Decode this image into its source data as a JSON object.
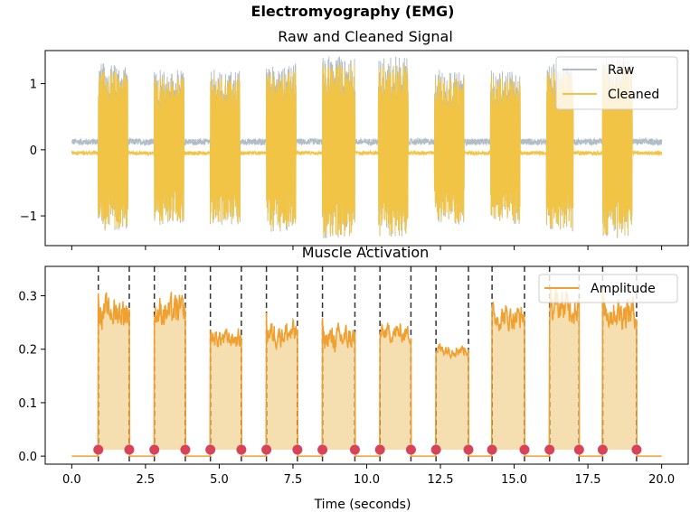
{
  "title": "Electromyography (EMG)",
  "colors": {
    "raw": "#b0bcc6",
    "cleaned": "#f1c445",
    "amplitude": "#f0a030",
    "fill": "#f5deb0",
    "marker": "#d9435a",
    "vline": "#333333"
  },
  "chart_data": [
    {
      "type": "line",
      "title": "Raw and Cleaned Signal",
      "xlabel": "",
      "ylabel": "",
      "xlim": [
        -0.9,
        20.9
      ],
      "ylim": [
        -1.45,
        1.5
      ],
      "yticks": [
        -1,
        0,
        1
      ],
      "ytick_labels": [
        "−1",
        "0",
        "1"
      ],
      "legend": {
        "position": "top-right",
        "entries": [
          "Raw",
          "Cleaned"
        ]
      },
      "x_range": [
        0,
        20
      ],
      "baseline": {
        "raw_level": 0.12,
        "cleaned_level": -0.05,
        "raw_noise": 0.05,
        "cleaned_noise": 0.03
      },
      "bursts": [
        {
          "start": 0.9,
          "end": 1.9,
          "amplitude": 1.2
        },
        {
          "start": 2.8,
          "end": 3.8,
          "amplitude": 1.1
        },
        {
          "start": 4.7,
          "end": 5.7,
          "amplitude": 1.1
        },
        {
          "start": 6.6,
          "end": 7.6,
          "amplitude": 1.2
        },
        {
          "start": 8.5,
          "end": 9.6,
          "amplitude": 1.3
        },
        {
          "start": 10.4,
          "end": 11.4,
          "amplitude": 1.3
        },
        {
          "start": 12.3,
          "end": 13.3,
          "amplitude": 1.1
        },
        {
          "start": 14.2,
          "end": 15.2,
          "amplitude": 1.1
        },
        {
          "start": 16.1,
          "end": 17.0,
          "amplitude": 1.2
        },
        {
          "start": 18.0,
          "end": 19.0,
          "amplitude": 1.3
        }
      ],
      "series": [
        {
          "name": "Raw"
        },
        {
          "name": "Cleaned"
        }
      ]
    },
    {
      "type": "area",
      "title": "Muscle Activation",
      "xlabel": "Time (seconds)",
      "ylabel": "",
      "xlim": [
        -0.9,
        20.9
      ],
      "ylim": [
        -0.015,
        0.355
      ],
      "xticks": [
        0,
        2.5,
        5,
        7.5,
        10,
        12.5,
        15,
        17.5,
        20
      ],
      "xtick_labels": [
        "0.0",
        "2.5",
        "5.0",
        "7.5",
        "10.0",
        "12.5",
        "15.0",
        "17.5",
        "20.0"
      ],
      "yticks": [
        0,
        0.1,
        0.2,
        0.3
      ],
      "ytick_labels": [
        "0.0",
        "0.1",
        "0.2",
        "0.3"
      ],
      "legend": {
        "position": "top-right",
        "entries": [
          "Amplitude"
        ]
      },
      "baseline_level": 0.0,
      "activation_level": 0.012,
      "bursts": [
        {
          "onset": 0.9,
          "offset": 1.95,
          "mean": 0.27,
          "var": 0.05
        },
        {
          "onset": 2.8,
          "offset": 3.85,
          "mean": 0.27,
          "var": 0.05
        },
        {
          "onset": 4.7,
          "offset": 5.75,
          "mean": 0.22,
          "var": 0.03
        },
        {
          "onset": 6.6,
          "offset": 7.65,
          "mean": 0.23,
          "var": 0.04
        },
        {
          "onset": 8.5,
          "offset": 9.6,
          "mean": 0.22,
          "var": 0.04
        },
        {
          "onset": 10.45,
          "offset": 11.5,
          "mean": 0.23,
          "var": 0.03
        },
        {
          "onset": 12.35,
          "offset": 13.45,
          "mean": 0.2,
          "var": 0.02
        },
        {
          "onset": 14.25,
          "offset": 15.35,
          "mean": 0.26,
          "var": 0.04
        },
        {
          "onset": 16.2,
          "offset": 17.2,
          "mean": 0.28,
          "var": 0.05
        },
        {
          "onset": 18.0,
          "offset": 19.15,
          "mean": 0.27,
          "var": 0.05
        }
      ],
      "series": [
        {
          "name": "Amplitude"
        }
      ]
    }
  ]
}
